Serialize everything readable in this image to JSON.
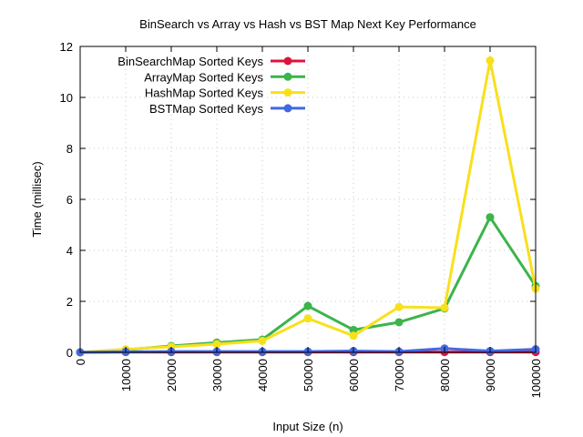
{
  "chart_data": {
    "type": "line",
    "title": "BinSearch vs Array vs Hash vs BST Map Next Key Performance",
    "xlabel": "Input Size (n)",
    "ylabel": "Time (millisec)",
    "xlim": [
      0,
      100000
    ],
    "ylim": [
      0,
      12
    ],
    "grid": true,
    "legend_position": "top-left",
    "x": [
      0,
      10000,
      20000,
      30000,
      40000,
      50000,
      60000,
      70000,
      80000,
      90000,
      100000
    ],
    "x_tick_labels": [
      "0",
      "10000",
      "20000",
      "30000",
      "40000",
      "50000",
      "60000",
      "70000",
      "80000",
      "90000",
      "100000"
    ],
    "y_ticks": [
      0,
      2,
      4,
      6,
      8,
      10,
      12
    ],
    "y_tick_labels": [
      "0",
      "2",
      "4",
      "6",
      "8",
      "10",
      "12"
    ],
    "series": [
      {
        "name": "BinSearchMap Sorted Keys",
        "color": "#dc143c",
        "values": [
          0,
          0.01,
          0.01,
          0.01,
          0.01,
          0.01,
          0.01,
          0.01,
          0.01,
          0.01,
          0.01
        ]
      },
      {
        "name": "ArrayMap Sorted Keys",
        "color": "#3cb44b",
        "values": [
          0,
          0.1,
          0.25,
          0.38,
          0.5,
          1.82,
          0.88,
          1.18,
          1.72,
          5.3,
          2.6
        ]
      },
      {
        "name": "HashMap Sorted Keys",
        "color": "#f8e01c",
        "values": [
          0,
          0.12,
          0.22,
          0.32,
          0.45,
          1.33,
          0.65,
          1.78,
          1.75,
          11.45,
          2.5
        ]
      },
      {
        "name": "BSTMap Sorted Keys",
        "color": "#4169e1",
        "values": [
          0,
          0.02,
          0.03,
          0.03,
          0.03,
          0.03,
          0.05,
          0.03,
          0.15,
          0.05,
          0.12
        ]
      }
    ]
  }
}
